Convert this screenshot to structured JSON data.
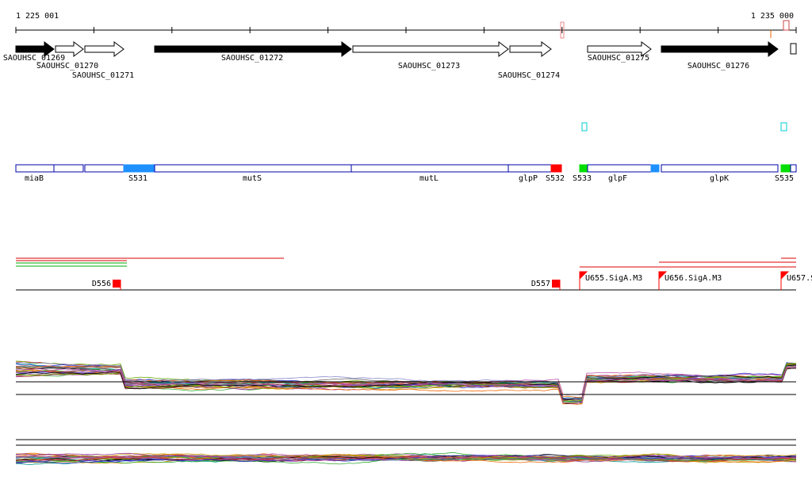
{
  "ruler": {
    "start": "1 225 001",
    "end": "1 235 000"
  },
  "genes": [
    "SAOUHSC_01269",
    "SAOUHSC_01270",
    "SAOUHSC_01271",
    "SAOUHSC_01272",
    "SAOUHSC_01273",
    "SAOUHSC_01274",
    "SAOUHSC_01275",
    "SAOUHSC_01276"
  ],
  "annotations": [
    "miaB",
    "S531",
    "mutS",
    "mutL",
    "glpP",
    "S532",
    "S533",
    "glpF",
    "glpK",
    "S535"
  ],
  "promoters": [
    "D556",
    "D557",
    "U655.SigA.M3",
    "U656.SigA.M3",
    "U657.S"
  ]
}
